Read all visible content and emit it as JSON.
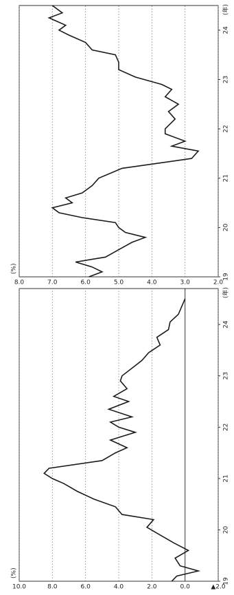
{
  "chart_data": [
    {
      "type": "line",
      "y_label": "(%)",
      "x_label": "(年)",
      "xlim": [
        19,
        24.7
      ],
      "xticks": [
        19,
        20,
        21,
        22,
        23,
        24
      ],
      "ylim": [
        -2,
        10
      ],
      "yticks": [
        {
          "value": -2,
          "label": "▲2.0"
        },
        {
          "value": 0,
          "label": "0.0"
        },
        {
          "value": 2,
          "label": "2.0"
        },
        {
          "value": 4,
          "label": "4.0"
        },
        {
          "value": 6,
          "label": "6.0"
        },
        {
          "value": 8,
          "label": "8.0"
        },
        {
          "value": 10,
          "label": "10.0"
        }
      ],
      "grid": true,
      "series": [
        {
          "color": "#1a1a1a",
          "x": [
            19.0,
            19.1,
            19.2,
            19.3,
            19.45,
            19.6,
            19.75,
            19.9,
            20.05,
            20.2,
            20.3,
            20.45,
            20.6,
            20.75,
            20.9,
            21.0,
            21.1,
            21.2,
            21.35,
            21.5,
            21.6,
            21.75,
            21.9,
            22.0,
            22.1,
            22.2,
            22.35,
            22.5,
            22.6,
            22.75,
            22.9,
            23.0,
            23.15,
            23.3,
            23.45,
            23.6,
            23.75,
            23.9,
            24.05,
            24.2,
            24.35,
            24.5
          ],
          "values": [
            0.8,
            0.5,
            -0.8,
            0.3,
            0.6,
            -0.2,
            0.7,
            1.5,
            2.3,
            1.9,
            3.8,
            4.2,
            5.5,
            6.5,
            7.3,
            8.0,
            8.5,
            8.2,
            5.0,
            4.2,
            3.5,
            4.5,
            3.0,
            4.0,
            4.5,
            3.2,
            4.6,
            3.4,
            4.3,
            3.5,
            3.9,
            3.8,
            3.2,
            2.6,
            2.2,
            1.5,
            1.7,
            1.0,
            0.9,
            0.4,
            0.2,
            0.0
          ]
        }
      ]
    },
    {
      "type": "line",
      "y_label": "(%)",
      "x_label": "(年)",
      "xlim": [
        19,
        24.5
      ],
      "xticks": [
        19,
        20,
        21,
        22,
        23,
        24
      ],
      "ylim": [
        2,
        8
      ],
      "yticks": [
        {
          "value": 2,
          "label": "2.0"
        },
        {
          "value": 3,
          "label": "3.0"
        },
        {
          "value": 4,
          "label": "4.0"
        },
        {
          "value": 5,
          "label": "5.0"
        },
        {
          "value": 6,
          "label": "6.0"
        },
        {
          "value": 7,
          "label": "7.0"
        },
        {
          "value": 8,
          "label": "8.0"
        }
      ],
      "grid": true,
      "series": [
        {
          "color": "#1a1a1a",
          "x": [
            19.0,
            19.1,
            19.2,
            19.3,
            19.4,
            19.55,
            19.7,
            19.8,
            19.9,
            20.0,
            20.1,
            20.2,
            20.3,
            20.4,
            20.5,
            20.6,
            20.7,
            20.85,
            21.0,
            21.2,
            21.4,
            21.55,
            21.65,
            21.75,
            21.9,
            22.0,
            22.2,
            22.35,
            22.5,
            22.65,
            22.8,
            22.9,
            23.05,
            23.2,
            23.35,
            23.5,
            23.6,
            23.75,
            23.9,
            24.0,
            24.1,
            24.25,
            24.35,
            24.5
          ],
          "values": [
            5.9,
            5.5,
            5.8,
            6.3,
            5.4,
            5.0,
            4.6,
            4.2,
            4.8,
            5.0,
            5.1,
            6.1,
            6.8,
            7.0,
            6.4,
            6.6,
            6.1,
            5.8,
            5.6,
            4.9,
            2.8,
            2.6,
            3.4,
            3.0,
            3.6,
            3.6,
            3.3,
            3.5,
            3.2,
            3.6,
            3.4,
            3.7,
            4.5,
            5.0,
            5.0,
            5.1,
            5.8,
            6.0,
            6.5,
            6.8,
            6.6,
            7.1,
            6.7,
            7.0
          ]
        }
      ]
    }
  ]
}
